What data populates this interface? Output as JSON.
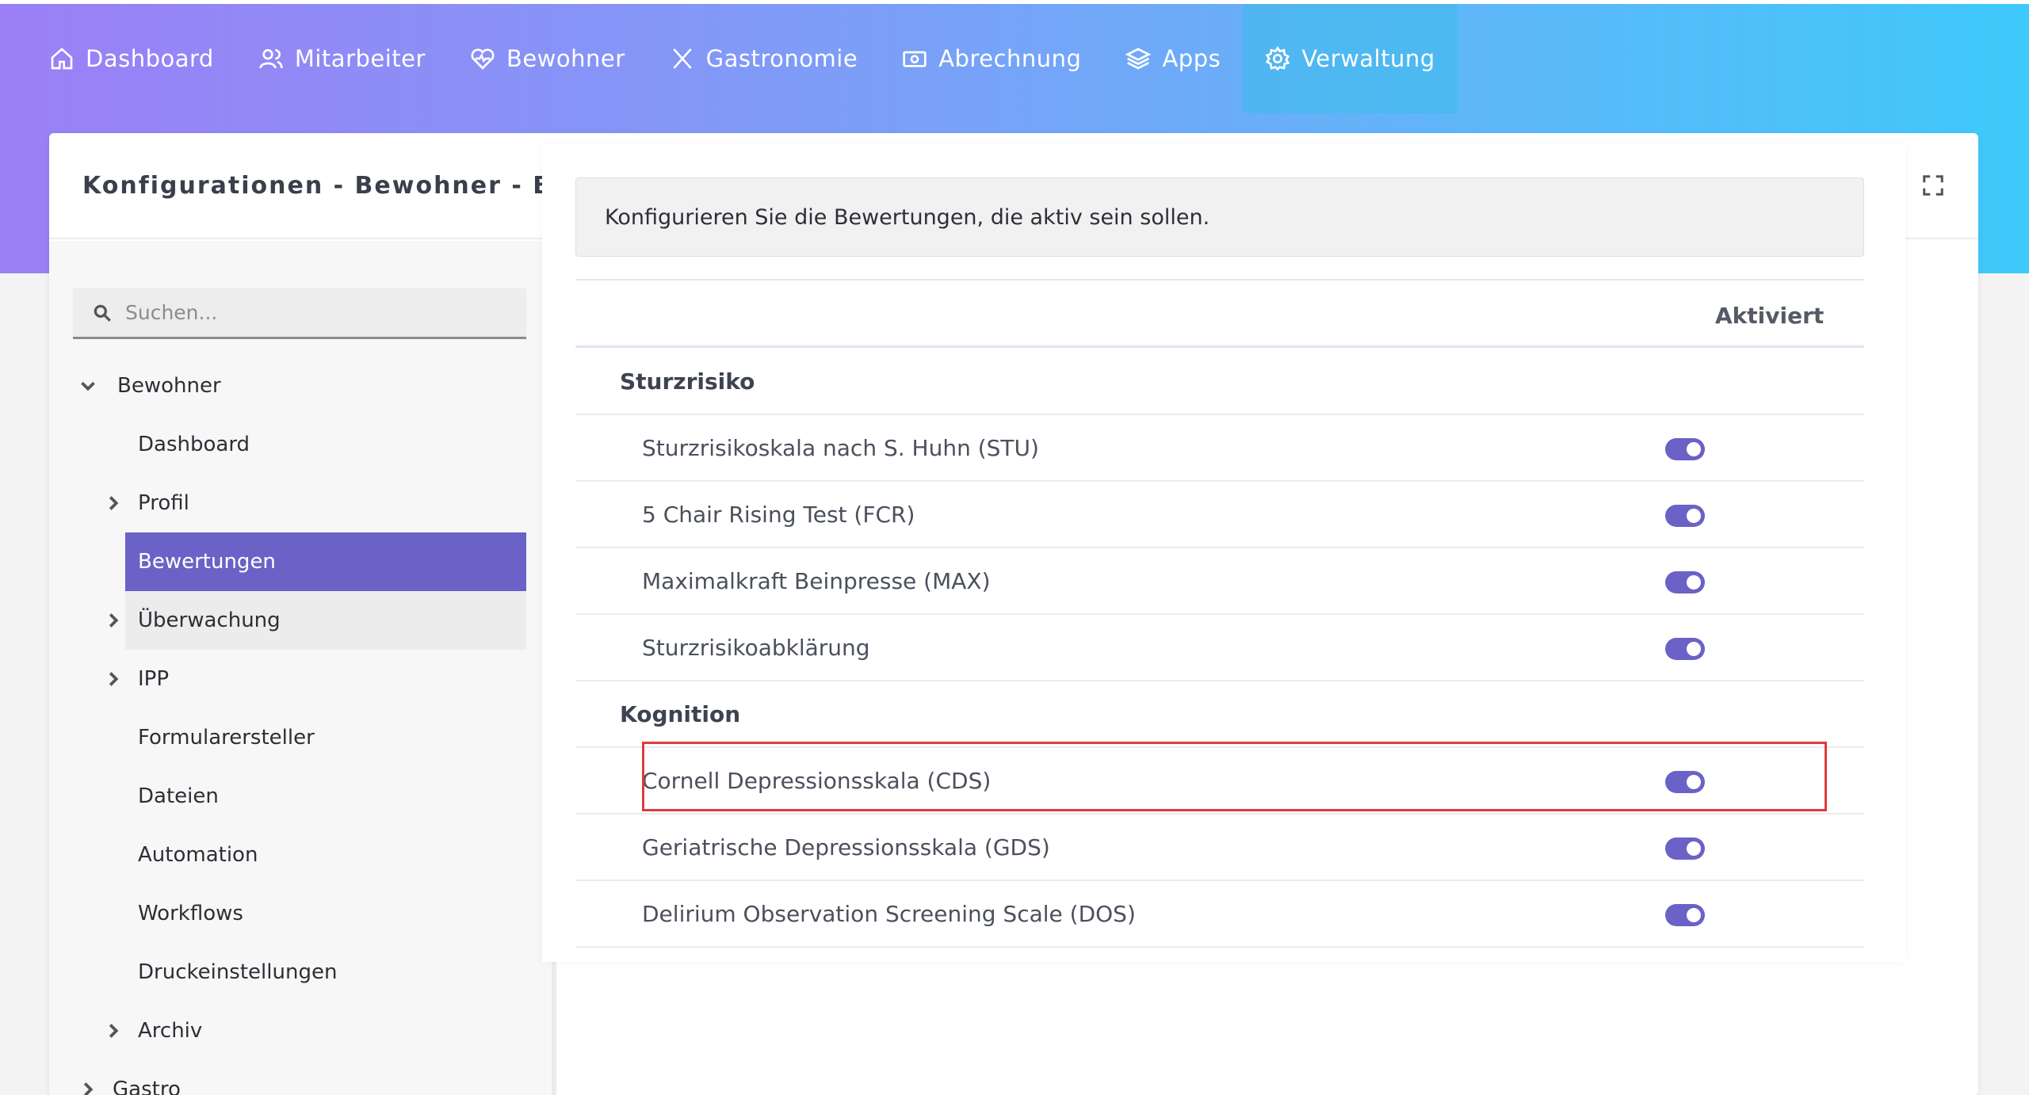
{
  "nav": {
    "items": [
      {
        "label": "Dashboard",
        "icon": "home-icon"
      },
      {
        "label": "Mitarbeiter",
        "icon": "users-icon"
      },
      {
        "label": "Bewohner",
        "icon": "heart-pulse-icon"
      },
      {
        "label": "Gastronomie",
        "icon": "cutlery-icon"
      },
      {
        "label": "Abrechnung",
        "icon": "money-icon"
      },
      {
        "label": "Apps",
        "icon": "layers-icon"
      },
      {
        "label": "Verwaltung",
        "icon": "gear-icon",
        "active": true
      }
    ]
  },
  "header": {
    "title": "Konfigurationen  -  Bewohner  -  Bewertungen",
    "actions": [
      "refresh-icon",
      "fullscreen-icon"
    ]
  },
  "sidebar": {
    "search_placeholder": "Suchen...",
    "items": [
      {
        "label": "Bewohner",
        "chevron": "down"
      },
      {
        "label": "Dashboard",
        "chevron": "none"
      },
      {
        "label": "Profil",
        "chevron": "right"
      },
      {
        "label": "Bewertungen",
        "chevron": "none",
        "selected": true
      },
      {
        "label": "Überwachung",
        "chevron": "right"
      },
      {
        "label": "IPP",
        "chevron": "right"
      },
      {
        "label": "Formularersteller",
        "chevron": "none"
      },
      {
        "label": "Dateien",
        "chevron": "none"
      },
      {
        "label": "Automation",
        "chevron": "none"
      },
      {
        "label": "Workflows",
        "chevron": "none"
      },
      {
        "label": "Druckeinstellungen",
        "chevron": "none"
      },
      {
        "label": "Archiv",
        "chevron": "right"
      },
      {
        "label": "Gastro",
        "chevron": "right"
      }
    ]
  },
  "content": {
    "info": "Konfigurieren Sie die Bewertungen, die aktiv sein sollen.",
    "column_header": "Aktiviert",
    "groups": [
      {
        "name": "Sturzrisiko",
        "items": [
          {
            "label": "Sturzrisikoskala nach S. Huhn (STU)",
            "enabled": true
          },
          {
            "label": "5 Chair Rising Test (FCR)",
            "enabled": true
          },
          {
            "label": "Maximalkraft Beinpresse (MAX)",
            "enabled": true
          },
          {
            "label": "Sturzrisikoabklärung",
            "enabled": true
          }
        ]
      },
      {
        "name": "Kognition",
        "items": [
          {
            "label": "Cornell Depressionsskala (CDS)",
            "enabled": true
          },
          {
            "label": "Geriatrische Depressionsskala (GDS)",
            "enabled": true
          },
          {
            "label": "Delirium Observation Screening Scale (DOS)",
            "enabled": true
          }
        ]
      }
    ]
  },
  "colors": {
    "accent": "#6a62c6",
    "highlight": "#e03a3a"
  }
}
